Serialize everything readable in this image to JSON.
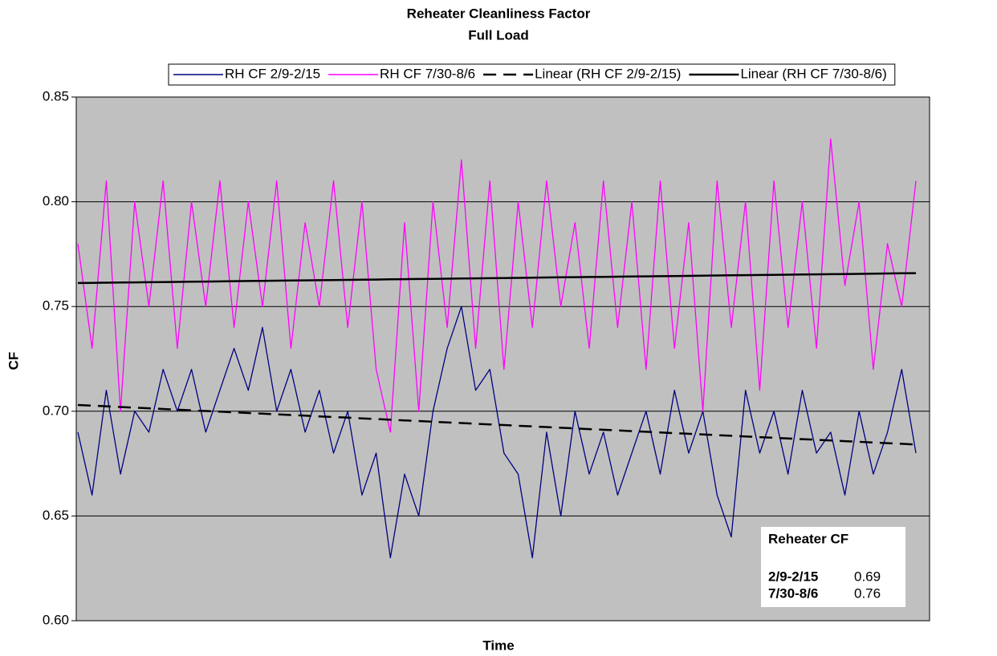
{
  "chart_data": {
    "type": "line",
    "title": "Reheater Cleanliness Factor",
    "subtitle": "Full Load",
    "x_label": "Time",
    "y_label": "CF",
    "categories": [
      null,
      null,
      null,
      null,
      null,
      null,
      null,
      null,
      null,
      null,
      null,
      null,
      null,
      null,
      null,
      null,
      null,
      null,
      null,
      null,
      null,
      null,
      null,
      null,
      null,
      null,
      null,
      null,
      null,
      null,
      null,
      null,
      null,
      null,
      null,
      null,
      null,
      null,
      null,
      null,
      null,
      null,
      null,
      null,
      null,
      null,
      null,
      null,
      null,
      null,
      null,
      null,
      null,
      null,
      null,
      null,
      null,
      null,
      null,
      null
    ],
    "series": [
      {
        "name": "RH CF 2/9-2/15",
        "color": "#000080",
        "dash": false,
        "values": [
          0.69,
          0.66,
          0.71,
          0.67,
          0.7,
          0.69,
          0.72,
          0.7,
          0.72,
          0.69,
          0.71,
          0.73,
          0.71,
          0.74,
          0.7,
          0.72,
          0.69,
          0.71,
          0.68,
          0.7,
          0.66,
          0.68,
          0.63,
          0.67,
          0.65,
          0.7,
          0.73,
          0.75,
          0.71,
          0.72,
          0.68,
          0.67,
          0.63,
          0.69,
          0.65,
          0.7,
          0.67,
          0.69,
          0.66,
          0.68,
          0.7,
          0.67,
          0.71,
          0.68,
          0.7,
          0.66,
          0.64,
          0.71,
          0.68,
          0.7,
          0.67,
          0.71,
          0.68,
          0.69,
          0.66,
          0.7,
          0.67,
          0.69,
          0.72,
          0.68
        ]
      },
      {
        "name": "RH CF 7/30-8/6",
        "color": "#ff00ff",
        "dash": false,
        "values": [
          0.78,
          0.73,
          0.81,
          0.7,
          0.8,
          0.75,
          0.81,
          0.73,
          0.8,
          0.75,
          0.81,
          0.74,
          0.8,
          0.75,
          0.81,
          0.73,
          0.79,
          0.75,
          0.81,
          0.74,
          0.8,
          0.72,
          0.69,
          0.79,
          0.7,
          0.8,
          0.74,
          0.82,
          0.73,
          0.81,
          0.72,
          0.8,
          0.74,
          0.81,
          0.75,
          0.79,
          0.73,
          0.81,
          0.74,
          0.8,
          0.72,
          0.81,
          0.73,
          0.79,
          0.7,
          0.81,
          0.74,
          0.8,
          0.71,
          0.81,
          0.74,
          0.8,
          0.73,
          0.83,
          0.76,
          0.8,
          0.72,
          0.78,
          0.75,
          0.81
        ]
      },
      {
        "name": "Linear (RH CF 2/9-2/15)",
        "color": "#000000",
        "dash": true,
        "values": [
          0.703,
          0.70268,
          0.70236,
          0.70204,
          0.70172,
          0.7014,
          0.70108,
          0.70076,
          0.70044,
          0.70012,
          0.6998,
          0.69948,
          0.69916,
          0.69884,
          0.69852,
          0.6982,
          0.69788,
          0.69756,
          0.69724,
          0.69692,
          0.6966,
          0.69628,
          0.69596,
          0.69564,
          0.69532,
          0.695,
          0.69468,
          0.69436,
          0.69404,
          0.69372,
          0.6934,
          0.69308,
          0.69276,
          0.69244,
          0.69212,
          0.6918,
          0.69148,
          0.69116,
          0.69084,
          0.69052,
          0.6902,
          0.68988,
          0.68956,
          0.68924,
          0.68892,
          0.6886,
          0.68828,
          0.68796,
          0.68764,
          0.68732,
          0.687,
          0.68668,
          0.68636,
          0.68604,
          0.68572,
          0.6854,
          0.68508,
          0.68476,
          0.68444,
          0.68412
        ]
      },
      {
        "name": "Linear (RH CF 7/30-8/6)",
        "color": "#000000",
        "dash": false,
        "values": [
          0.7612,
          0.76128,
          0.76136,
          0.76144,
          0.76152,
          0.7616,
          0.76168,
          0.76176,
          0.76184,
          0.76192,
          0.762,
          0.76208,
          0.76216,
          0.76224,
          0.76232,
          0.7624,
          0.76248,
          0.76256,
          0.76264,
          0.76272,
          0.7628,
          0.76288,
          0.76296,
          0.76304,
          0.76312,
          0.7632,
          0.76328,
          0.76336,
          0.76344,
          0.76352,
          0.7636,
          0.76368,
          0.76376,
          0.76384,
          0.76392,
          0.764,
          0.76408,
          0.76416,
          0.76424,
          0.76432,
          0.7644,
          0.76448,
          0.76456,
          0.76464,
          0.76472,
          0.7648,
          0.76488,
          0.76496,
          0.76504,
          0.76512,
          0.7652,
          0.76528,
          0.76536,
          0.76544,
          0.76552,
          0.7656,
          0.76568,
          0.76576,
          0.76584,
          0.76592
        ]
      }
    ],
    "ylim": [
      0.6,
      0.85
    ],
    "yticks": [
      {
        "value": 0.6,
        "label": "0.60"
      },
      0.65,
      {
        "value": 0.7,
        "label": "0.70"
      },
      0.75,
      {
        "value": 0.8,
        "label": "0.80"
      },
      0.85
    ],
    "grid": true,
    "legend": "top",
    "plot_background": "#c0c0c0",
    "annotation": {
      "title": "Reheater CF",
      "rows": [
        {
          "label": "2/9-2/15",
          "value": 0.69
        },
        {
          "label": "7/30-8/6",
          "value": 0.76
        }
      ]
    }
  }
}
